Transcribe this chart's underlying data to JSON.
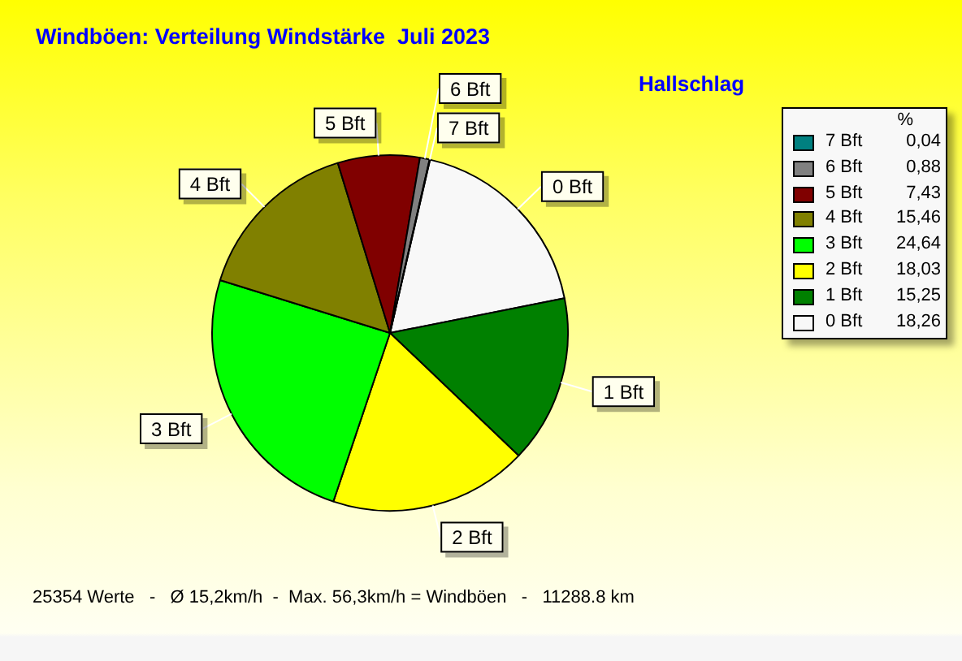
{
  "chart_data": {
    "type": "pie",
    "title": "Windböen: Verteilung Windstärke  Juli 2023",
    "subtitle": "Hallschlag",
    "categories": [
      "0 Bft",
      "1 Bft",
      "2 Bft",
      "3 Bft",
      "4 Bft",
      "5 Bft",
      "6 Bft",
      "7 Bft"
    ],
    "values": [
      18.26,
      15.25,
      18.03,
      24.64,
      15.46,
      7.43,
      0.88,
      0.04
    ],
    "colors": [
      "#f8f8f8",
      "#008000",
      "#ffff00",
      "#00ff00",
      "#808000",
      "#800000",
      "#808080",
      "#008080"
    ],
    "value_labels": [
      "18,26",
      "15,25",
      "18,03",
      "24,64",
      "15,46",
      "7,43",
      "0,88",
      "0,04"
    ],
    "legend": "right",
    "legend_title": "%",
    "annotations": [
      "25354 Werte   -   Ø 15,2km/h  -  Max. 56,3km/h = Windböen   -   11288.8 km"
    ]
  }
}
